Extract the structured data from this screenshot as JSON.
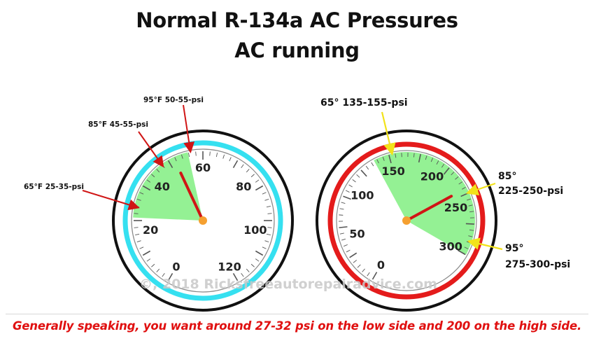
{
  "title": {
    "line1": "Normal R-134a AC Pressures",
    "line2": "AC running"
  },
  "low_gauge": {
    "scale_labels": [
      "0",
      "20",
      "40",
      "60",
      "80",
      "100",
      "120"
    ],
    "scale_values": [
      0,
      20,
      40,
      60,
      80,
      100,
      120
    ],
    "green_range": [
      25,
      55
    ],
    "needle_value": 50,
    "ring_color": "#35e0f0",
    "green_color": "#8ef08e",
    "annotations": [
      {
        "label": "95°F 50-55-psi",
        "value": 55
      },
      {
        "label": "85°F 45-55-psi",
        "value": 45
      },
      {
        "label": "65°F 25-35-psi",
        "value": 25
      }
    ]
  },
  "high_gauge": {
    "scale_labels": [
      "0",
      "50",
      "100",
      "150",
      "200",
      "250",
      "300"
    ],
    "scale_values": [
      0,
      50,
      100,
      150,
      200,
      250,
      300
    ],
    "green_range": [
      135,
      300
    ],
    "needle_value": 235,
    "ring_color": "#e41b1b",
    "green_color": "#8ef08e",
    "annotations": [
      {
        "label": "65° 135-155-psi",
        "value": 140
      },
      {
        "label_line1": "85°",
        "label_line2": "225-250-psi",
        "value": 225
      },
      {
        "label_line1": "95°",
        "label_line2": "275-300-psi",
        "value": 300
      }
    ]
  },
  "watermark": "©, 2018 Ricksfreeautorepairadvice.com",
  "footnote": "Generally speaking, you want around 27-32 psi on the low side and 200 on the high side.",
  "colors": {
    "annotation_arrow_low": "#d01515",
    "annotation_arrow_high": "#f2e21a",
    "needle": "#d01515",
    "pivot": "#f5a030",
    "footnote": "#e01010"
  }
}
